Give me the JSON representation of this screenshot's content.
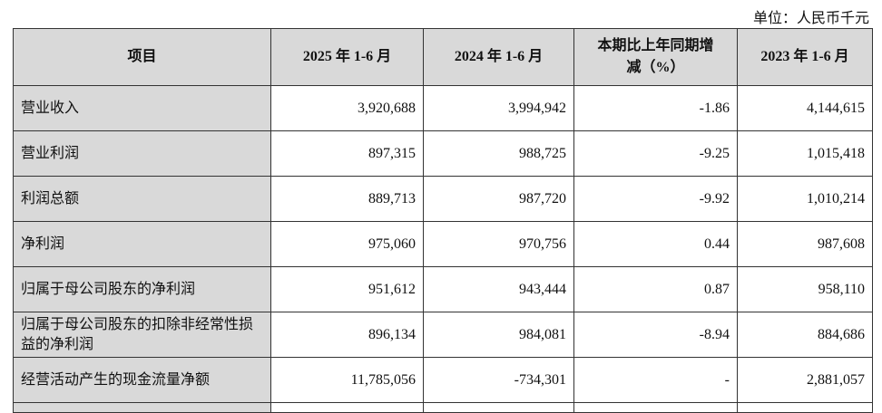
{
  "unit": "单位：人民币千元",
  "table": {
    "headers": [
      "项目",
      "2025 年 1-6 月",
      "2024 年 1-6 月",
      "本期比上年同期增减（%）",
      "2023 年 1-6 月"
    ],
    "rows": [
      [
        "营业收入",
        "3,920,688",
        "3,994,942",
        "-1.86",
        "4,144,615"
      ],
      [
        "营业利润",
        "897,315",
        "988,725",
        "-9.25",
        "1,015,418"
      ],
      [
        "利润总额",
        "889,713",
        "987,720",
        "-9.92",
        "1,010,214"
      ],
      [
        "净利润",
        "975,060",
        "970,756",
        "0.44",
        "987,608"
      ],
      [
        "归属于母公司股东的净利润",
        "951,612",
        "943,444",
        "0.87",
        "958,110"
      ],
      [
        "归属于母公司股东的扣除非经常性损益的净利润",
        "896,134",
        "984,081",
        "-8.94",
        "884,686"
      ],
      [
        "经营活动产生的现金流量净额",
        "11,785,056",
        "-734,301",
        "-",
        "2,881,057"
      ]
    ]
  }
}
